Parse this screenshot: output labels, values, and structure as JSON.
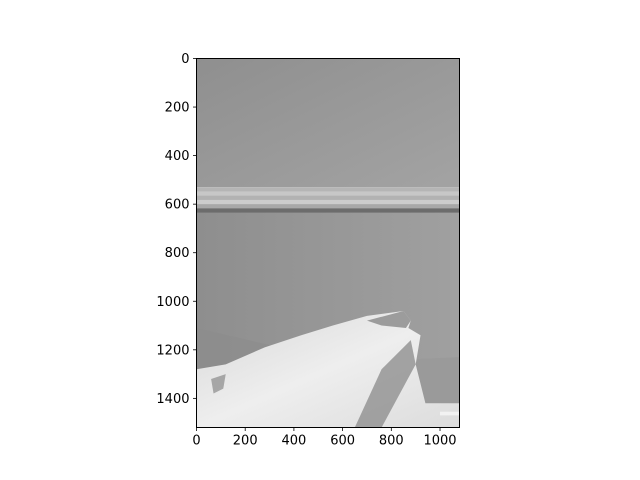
{
  "chart_data": {
    "type": "heatmap",
    "subtype": "image",
    "colormap": "gray",
    "xlim": [
      0,
      1080
    ],
    "ylim": [
      1520,
      0
    ],
    "xticks": [
      0,
      200,
      400,
      600,
      800,
      1000
    ],
    "yticks": [
      0,
      200,
      400,
      600,
      800,
      1000,
      1200,
      1400
    ],
    "xtick_labels": [
      "0",
      "200",
      "400",
      "600",
      "800",
      "1000"
    ],
    "ytick_labels": [
      "0",
      "200",
      "400",
      "600",
      "800",
      "1000",
      "1200",
      "1400"
    ],
    "y_inverted": true,
    "grid": false,
    "image_content": {
      "background_gray": "#999999",
      "molding_top_y": 530,
      "molding_bottom_y": 635,
      "molding_colors": [
        "#b5b5b5",
        "#c7c7c7",
        "#b2b2b2",
        "#cccccc",
        "#a8a8a8",
        "#6c6c6c"
      ],
      "lower_wall_gray": "#969696",
      "object_color": "#e6e6e6",
      "object_shadow_color": "#8a8a8a",
      "object_outline_data": [
        [
          0,
          1280
        ],
        [
          120,
          1260
        ],
        [
          280,
          1190
        ],
        [
          430,
          1140
        ],
        [
          560,
          1100
        ],
        [
          700,
          1060
        ],
        [
          850,
          1040
        ],
        [
          880,
          1080
        ],
        [
          870,
          1110
        ],
        [
          920,
          1140
        ],
        [
          900,
          1260
        ],
        [
          940,
          1420
        ],
        [
          1080,
          1420
        ],
        [
          1080,
          1520
        ],
        [
          0,
          1520
        ]
      ]
    }
  }
}
